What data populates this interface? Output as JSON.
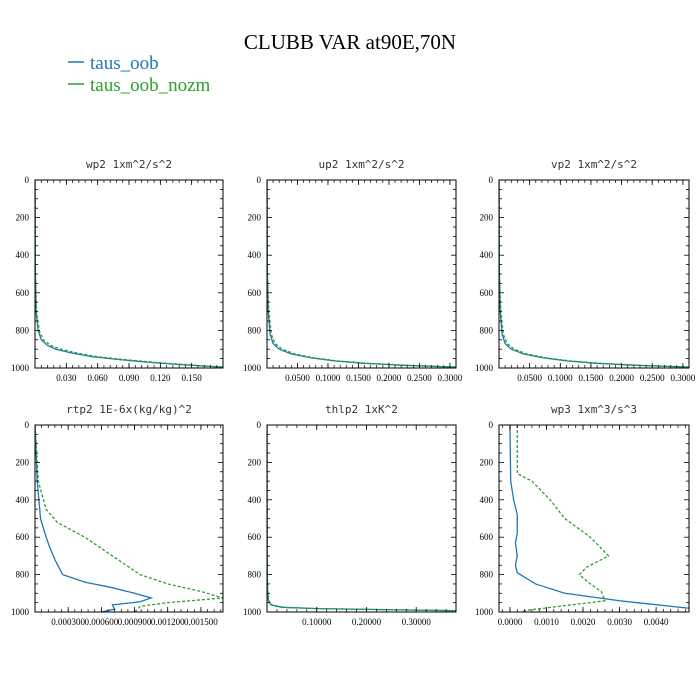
{
  "figure": {
    "title": "CLUBB VAR at90E,70N",
    "legend": [
      {
        "label": "taus_oob",
        "color": "#1f77b4"
      },
      {
        "label": "taus_oob_nozm",
        "color": "#2ca02c"
      }
    ]
  },
  "chart_data": [
    {
      "type": "line",
      "title": "wp2  1xm^2/s^2",
      "xlim": [
        0,
        0.18
      ],
      "ylim": [
        1000,
        0
      ],
      "yticks": [
        "0",
        "200",
        "400",
        "600",
        "800",
        "1000"
      ],
      "xticks": [
        0.03,
        0.06,
        0.09,
        0.12,
        0.15
      ],
      "xtick_labels": [
        "0.030",
        "0.060",
        "0.090",
        "0.120",
        "0.150"
      ],
      "series": [
        {
          "name": "taus_oob",
          "style": "solid",
          "color": "#1f77b4",
          "x": [
            0,
            0.0003,
            0.001,
            0.003,
            0.006,
            0.012,
            0.02,
            0.035,
            0.055,
            0.08,
            0.11,
            0.14,
            0.17,
            0.18
          ],
          "y": [
            0,
            500,
            700,
            800,
            850,
            880,
            900,
            920,
            940,
            955,
            970,
            982,
            992,
            995
          ]
        },
        {
          "name": "taus_oob_nozm",
          "style": "dashed",
          "color": "#2ca02c",
          "x": [
            0,
            0.0004,
            0.0015,
            0.004,
            0.008,
            0.015,
            0.025,
            0.04,
            0.06,
            0.085,
            0.115,
            0.145,
            0.17,
            0.18
          ],
          "y": [
            0,
            500,
            700,
            800,
            850,
            880,
            900,
            920,
            940,
            955,
            970,
            982,
            992,
            995
          ]
        }
      ]
    },
    {
      "type": "line",
      "title": "up2  1xm^2/s^2",
      "xlim": [
        0,
        0.31
      ],
      "ylim": [
        1000,
        0
      ],
      "yticks": [
        "0",
        "200",
        "400",
        "600",
        "800",
        "1000"
      ],
      "xticks": [
        0.05,
        0.1,
        0.15,
        0.2,
        0.25,
        0.3
      ],
      "xtick_labels": [
        "0.0500",
        "0.1000",
        "0.1500",
        "0.2000",
        "0.2500",
        "0.3000"
      ],
      "series": [
        {
          "name": "taus_oob",
          "style": "solid",
          "color": "#1f77b4",
          "x": [
            0,
            0.0005,
            0.002,
            0.005,
            0.01,
            0.02,
            0.04,
            0.07,
            0.11,
            0.16,
            0.22,
            0.28,
            0.31
          ],
          "y": [
            0,
            500,
            700,
            820,
            870,
            900,
            925,
            945,
            962,
            975,
            985,
            992,
            995
          ]
        },
        {
          "name": "taus_oob_nozm",
          "style": "dashed",
          "color": "#2ca02c",
          "x": [
            0,
            0.0007,
            0.003,
            0.007,
            0.013,
            0.025,
            0.045,
            0.075,
            0.115,
            0.165,
            0.225,
            0.285,
            0.31
          ],
          "y": [
            0,
            500,
            700,
            820,
            870,
            900,
            925,
            945,
            962,
            975,
            985,
            992,
            995
          ]
        }
      ]
    },
    {
      "type": "line",
      "title": "vp2  1xm^2/s^2",
      "xlim": [
        0,
        0.31
      ],
      "ylim": [
        1000,
        0
      ],
      "yticks": [
        "0",
        "200",
        "400",
        "600",
        "800",
        "1000"
      ],
      "xticks": [
        0.05,
        0.1,
        0.15,
        0.2,
        0.25,
        0.3
      ],
      "xtick_labels": [
        "0.0500",
        "0.1000",
        "0.1500",
        "0.2000",
        "0.2500",
        "0.3000"
      ],
      "series": [
        {
          "name": "taus_oob",
          "style": "solid",
          "color": "#1f77b4",
          "x": [
            0,
            0.0005,
            0.002,
            0.005,
            0.01,
            0.02,
            0.04,
            0.07,
            0.11,
            0.16,
            0.22,
            0.28,
            0.31
          ],
          "y": [
            0,
            500,
            700,
            820,
            870,
            900,
            925,
            945,
            962,
            975,
            985,
            992,
            995
          ]
        },
        {
          "name": "taus_oob_nozm",
          "style": "dashed",
          "color": "#2ca02c",
          "x": [
            0,
            0.0007,
            0.003,
            0.007,
            0.013,
            0.025,
            0.045,
            0.075,
            0.115,
            0.165,
            0.225,
            0.285,
            0.31
          ],
          "y": [
            0,
            500,
            700,
            820,
            870,
            900,
            925,
            945,
            962,
            975,
            985,
            992,
            995
          ]
        }
      ]
    },
    {
      "type": "line",
      "title": "rtp2  1E-6x(kg/kg)^2",
      "xlim": [
        0,
        0.0017
      ],
      "ylim": [
        1000,
        0
      ],
      "yticks": [
        "0",
        "200",
        "400",
        "600",
        "800",
        "1000"
      ],
      "xticks": [
        0.0003,
        0.0006,
        0.0009,
        0.0012,
        0.0015
      ],
      "xtick_labels": [
        "0.000300",
        "0.000600",
        "0.000900",
        "0.001200",
        "0.001500"
      ],
      "series": [
        {
          "name": "taus_oob",
          "style": "solid",
          "color": "#1f77b4",
          "x": [
            0,
            2e-05,
            5e-05,
            9e-05,
            0.00013,
            0.00018,
            0.00025,
            0.00045,
            0.0007,
            0.0009,
            0.00105,
            0.00095,
            0.0007,
            0.00072,
            0.0006
          ],
          "y": [
            0,
            300,
            500,
            580,
            650,
            720,
            800,
            840,
            870,
            900,
            925,
            945,
            962,
            985,
            1000
          ]
        },
        {
          "name": "taus_oob_nozm",
          "style": "dashed",
          "color": "#2ca02c",
          "x": [
            0,
            3e-05,
            0.0001,
            0.0002,
            0.00045,
            0.0007,
            0.0008,
            0.00095,
            0.0012,
            0.0015,
            0.0017,
            0.0012,
            0.00095,
            0.00093,
            0.0009
          ],
          "y": [
            0,
            300,
            450,
            520,
            600,
            700,
            740,
            800,
            850,
            890,
            925,
            950,
            970,
            985,
            1000
          ]
        }
      ]
    },
    {
      "type": "line",
      "title": "thlp2  1xK^2",
      "xlim": [
        0,
        0.38
      ],
      "ylim": [
        1000,
        0
      ],
      "yticks": [
        "0",
        "200",
        "400",
        "600",
        "800",
        "1000"
      ],
      "xticks": [
        0.1,
        0.2,
        0.3
      ],
      "xtick_labels": [
        "0.10000",
        "0.20000",
        "0.30000"
      ],
      "series": [
        {
          "name": "taus_oob",
          "style": "solid",
          "color": "#1f77b4",
          "x": [
            0,
            0.0003,
            0.001,
            0.003,
            0.008,
            0.03,
            0.1,
            0.2,
            0.3,
            0.38
          ],
          "y": [
            0,
            700,
            880,
            940,
            962,
            975,
            982,
            986,
            990,
            993
          ]
        },
        {
          "name": "taus_oob_nozm",
          "style": "dashed",
          "color": "#2ca02c",
          "x": [
            0,
            0.0004,
            0.0012,
            0.0035,
            0.009,
            0.035,
            0.11,
            0.21,
            0.31,
            0.38
          ],
          "y": [
            0,
            700,
            880,
            940,
            962,
            975,
            982,
            986,
            990,
            993
          ]
        }
      ]
    },
    {
      "type": "line",
      "title": "wp3  1xm^3/s^3",
      "xlim": [
        -0.0003,
        0.0049
      ],
      "ylim": [
        1000,
        0
      ],
      "yticks": [
        "0",
        "200",
        "400",
        "600",
        "800",
        "1000"
      ],
      "xticks": [
        0.0,
        0.001,
        0.002,
        0.003,
        0.004
      ],
      "xtick_labels": [
        "0.0000",
        "0.0010",
        "0.0020",
        "0.0030",
        "0.0040"
      ],
      "series": [
        {
          "name": "taus_oob",
          "style": "solid",
          "color": "#1f77b4",
          "x": [
            0,
            2e-05,
            0.0001,
            0.0002,
            0.0002,
            0.00015,
            0.0002,
            0.00015,
            0.0002,
            0.0007,
            0.0015,
            0.003,
            0.0049
          ],
          "y": [
            0,
            300,
            400,
            480,
            580,
            630,
            700,
            750,
            790,
            850,
            900,
            940,
            980
          ]
        },
        {
          "name": "taus_oob_nozm",
          "style": "dashed",
          "color": "#2ca02c",
          "x": [
            0.0002,
            0.0002,
            0.0006,
            0.0011,
            0.0015,
            0.0022,
            0.0027,
            0.0021,
            0.0019,
            0.0022,
            0.0025,
            0.0026,
            0.0005,
            0.0003
          ],
          "y": [
            0,
            260,
            300,
            400,
            500,
            600,
            700,
            760,
            800,
            850,
            890,
            940,
            990,
            1000
          ]
        }
      ]
    }
  ]
}
